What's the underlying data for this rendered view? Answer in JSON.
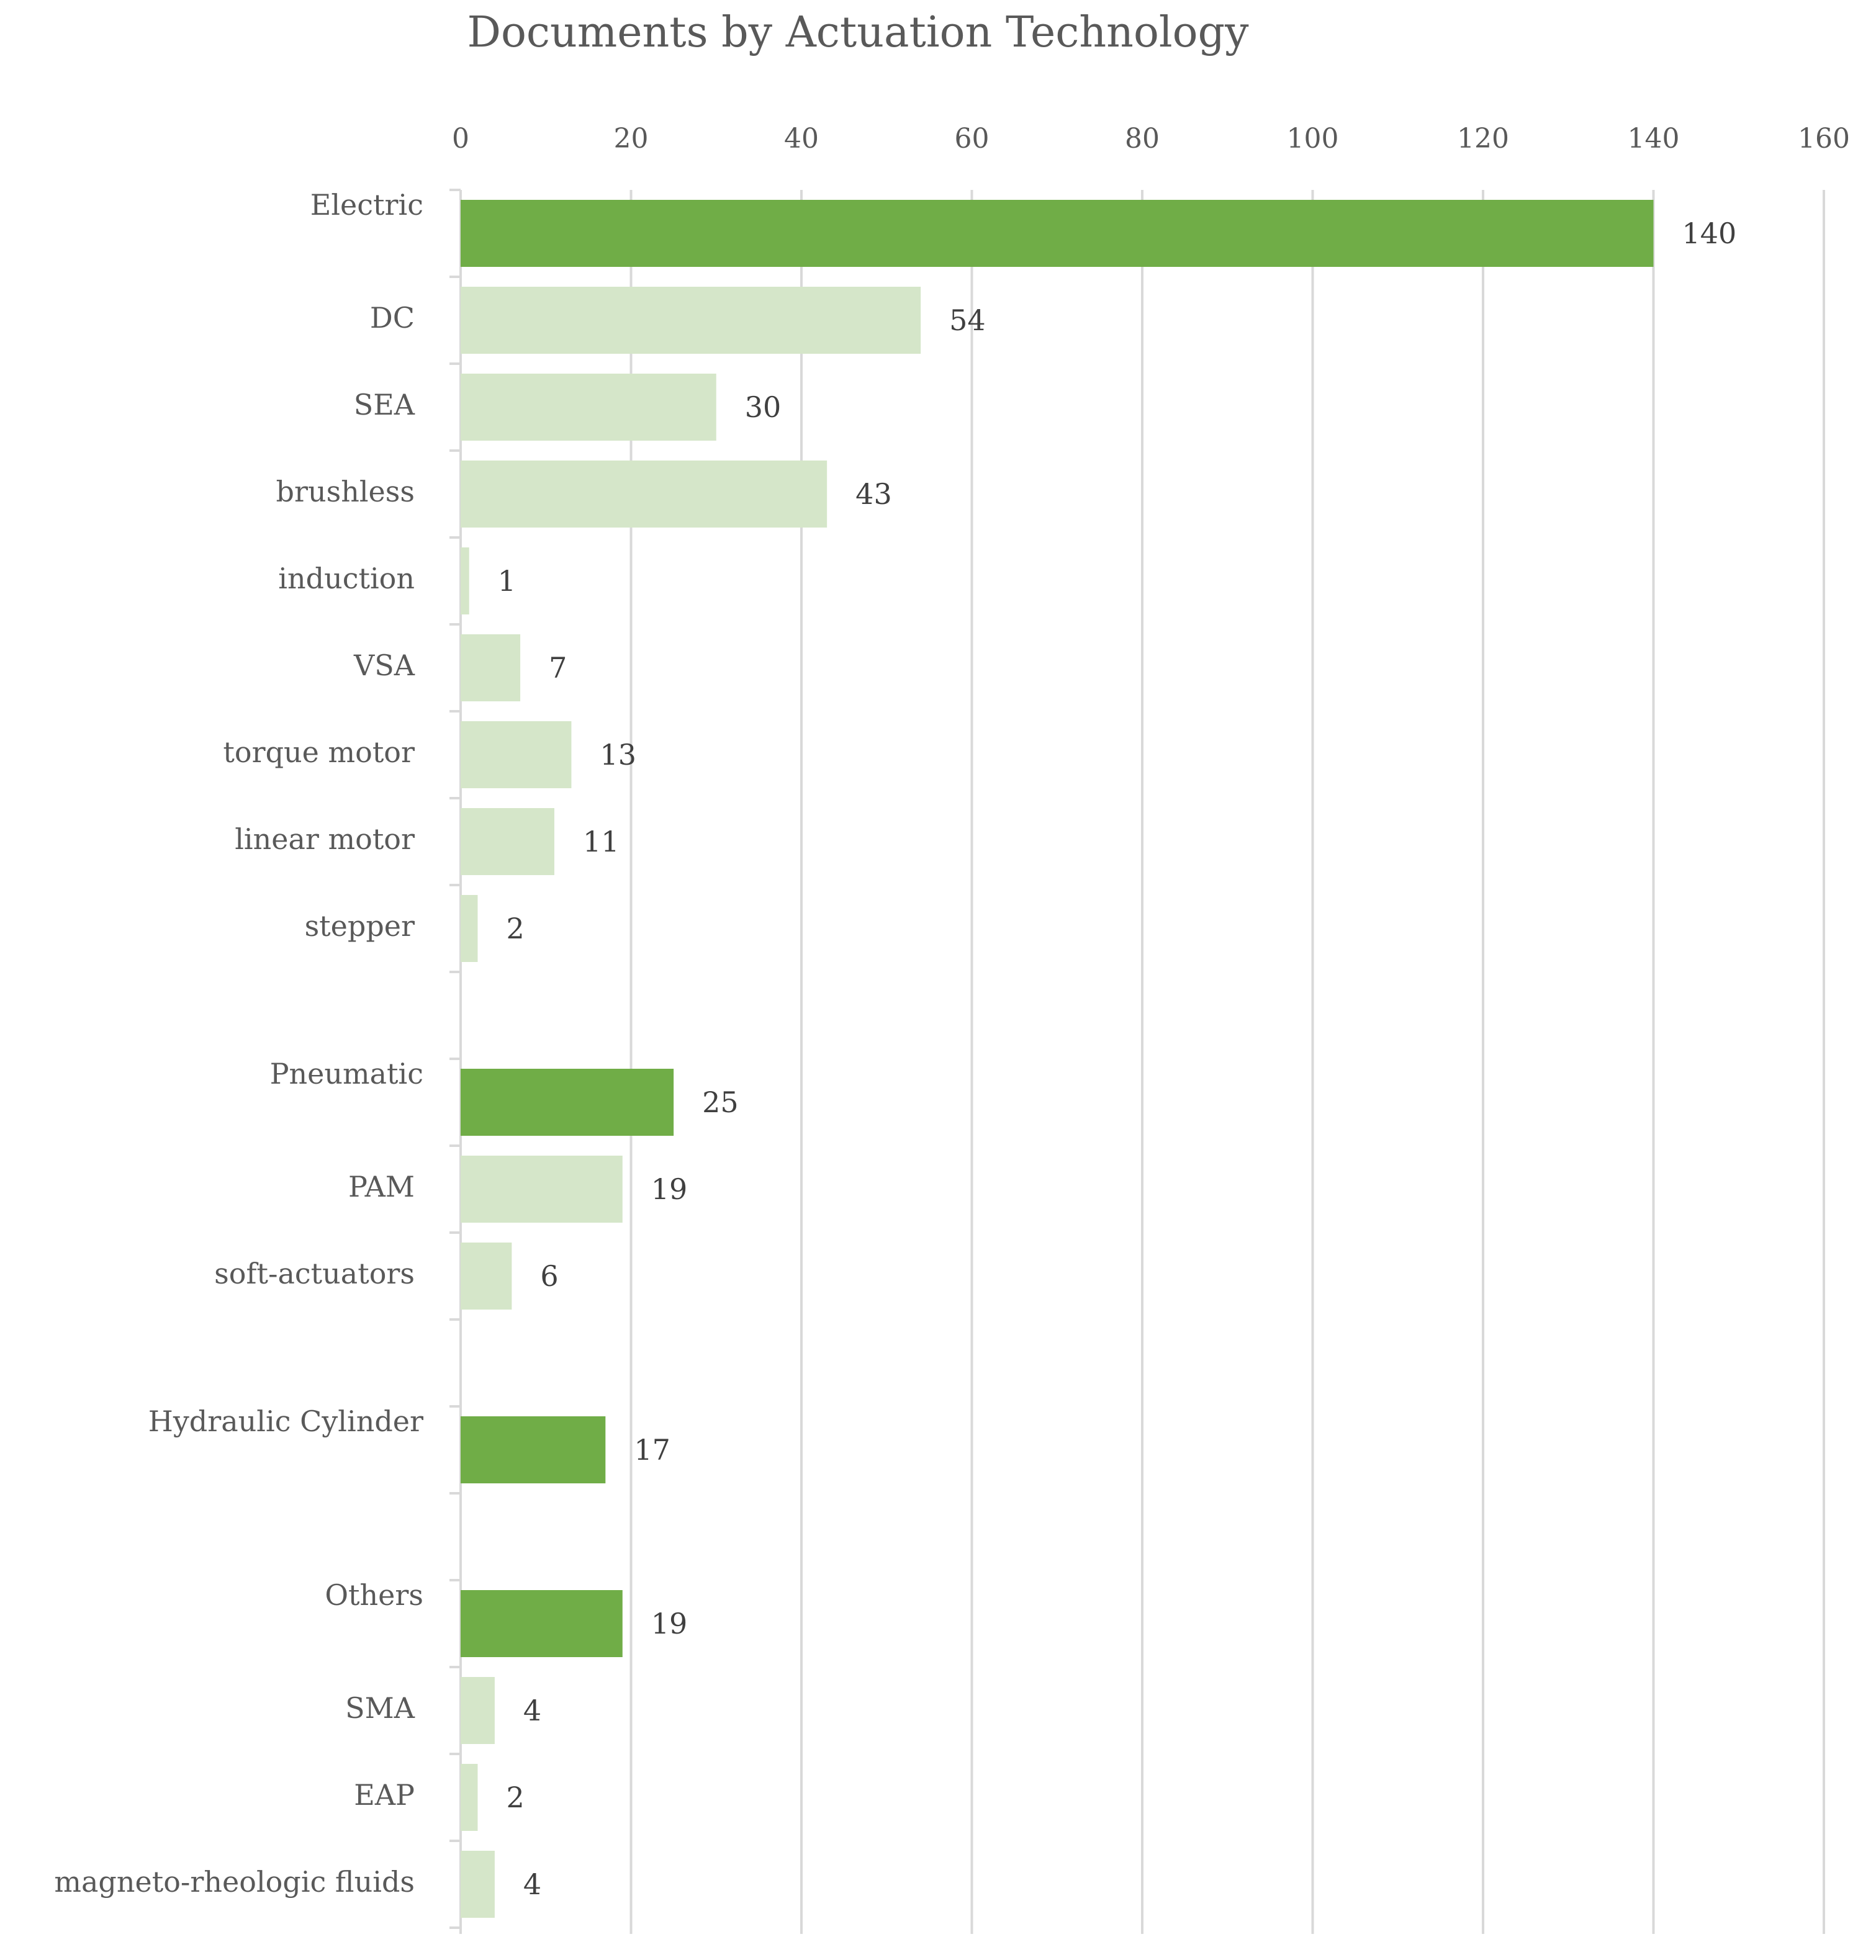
{
  "chart_data": {
    "type": "bar",
    "orientation": "horizontal",
    "title": "Documents by Actuation Technology",
    "xlabel": "",
    "ylabel": "",
    "xlim": [
      0,
      160
    ],
    "ticks": [
      0,
      20,
      40,
      60,
      80,
      100,
      120,
      140,
      160
    ],
    "axis_position": "top",
    "grid": true,
    "legend": "none",
    "colors": {
      "group": "#70AD47",
      "subcategory": "#D5E6C9",
      "grid": "#D9D9D9",
      "axis": "#D9D9D9",
      "text": "#595959",
      "value_text": "#404040"
    },
    "groups": [
      {
        "name": "Electric",
        "value": 140,
        "subcategories": [
          {
            "name": "DC",
            "value": 54
          },
          {
            "name": "SEA",
            "value": 30
          },
          {
            "name": "brushless",
            "value": 43
          },
          {
            "name": "induction",
            "value": 1
          },
          {
            "name": "VSA",
            "value": 7
          },
          {
            "name": "torque motor",
            "value": 13
          },
          {
            "name": "linear motor",
            "value": 11
          },
          {
            "name": "stepper",
            "value": 2
          }
        ]
      },
      {
        "name": "Pneumatic",
        "value": 25,
        "subcategories": [
          {
            "name": "PAM",
            "value": 19
          },
          {
            "name": "soft-actuators",
            "value": 6
          }
        ]
      },
      {
        "name": "Hydraulic Cylinder",
        "value": 17,
        "subcategories": []
      },
      {
        "name": "Others",
        "value": 19,
        "subcategories": [
          {
            "name": "SMA",
            "value": 4
          },
          {
            "name": "EAP",
            "value": 2
          },
          {
            "name": "magneto-rheologic fluids",
            "value": 4
          }
        ]
      }
    ]
  }
}
